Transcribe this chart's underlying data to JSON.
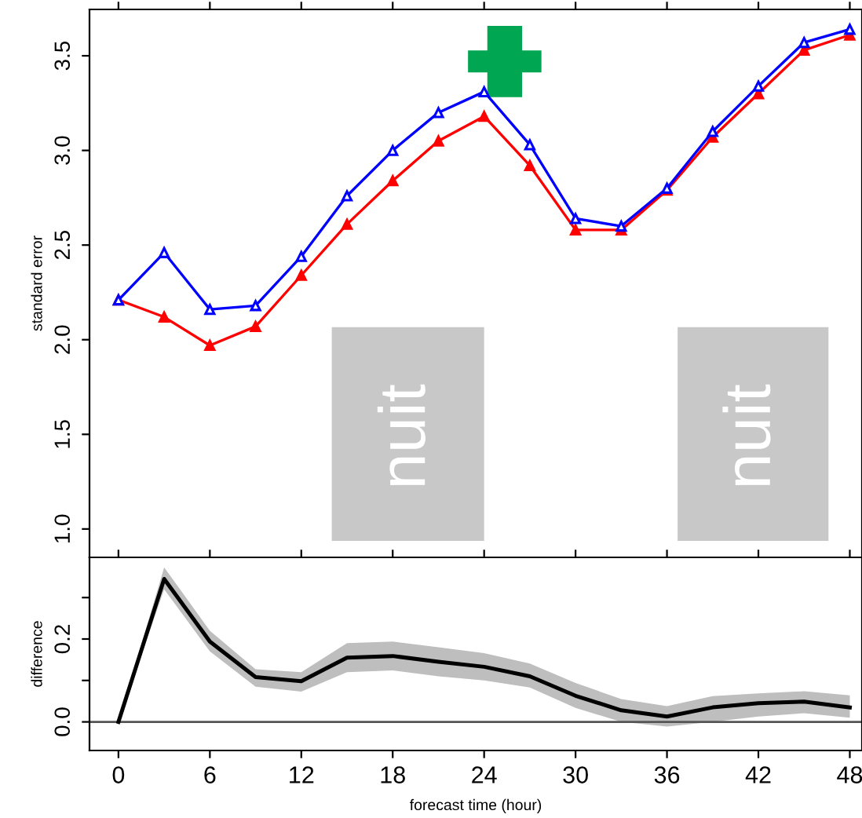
{
  "chart_data": [
    {
      "type": "line",
      "ylabel": "standard error",
      "x": [
        0,
        3,
        6,
        9,
        12,
        15,
        18,
        21,
        24,
        27,
        30,
        33,
        36,
        39,
        42,
        45,
        48
      ],
      "series": [
        {
          "color": "#0000ff",
          "marker": "triangle",
          "values": [
            2.21,
            2.46,
            2.16,
            2.18,
            2.44,
            2.76,
            3.0,
            3.2,
            3.31,
            3.03,
            2.64,
            2.6,
            2.8,
            3.1,
            3.34,
            3.57,
            3.64
          ]
        },
        {
          "color": "#ff0000",
          "marker": "triangle",
          "values": [
            2.21,
            2.12,
            1.97,
            2.07,
            2.34,
            2.61,
            2.84,
            3.05,
            3.18,
            2.92,
            2.58,
            2.58,
            2.79,
            3.07,
            3.3,
            3.53,
            3.61
          ]
        }
      ],
      "xlim": [
        -1.9,
        48.8
      ],
      "xticks": [
        {
          "value": 0,
          "label": null
        },
        {
          "value": 6,
          "label": null
        },
        {
          "value": 12,
          "label": null
        },
        {
          "value": 18,
          "label": null
        },
        {
          "value": 24,
          "label": null
        },
        {
          "value": 30,
          "label": null
        },
        {
          "value": 36,
          "label": null
        },
        {
          "value": 42,
          "label": null
        },
        {
          "value": 48,
          "label": null
        }
      ],
      "ylim": [
        0.85,
        3.745
      ],
      "yticks": [
        {
          "value": 1,
          "label": "1.0"
        },
        1.5,
        {
          "value": 2,
          "label": "2.0"
        },
        2.5,
        {
          "value": 3,
          "label": "3.0"
        },
        3.5
      ],
      "bands": [
        {
          "axis": "x",
          "from": 14.0,
          "to": 24.0,
          "label": "nuit",
          "color": "#c8c8c8"
        },
        {
          "axis": "x",
          "from": 36.7,
          "to": 46.6,
          "label": "nuit",
          "color": "#c8c8c8"
        }
      ],
      "tick_labels": "y",
      "grid": false,
      "legend": false
    },
    {
      "type": "line",
      "xlabel": "forecast time (hour)",
      "ylabel": "difference",
      "x": [
        0,
        3,
        6,
        9,
        12,
        15,
        18,
        21,
        24,
        27,
        30,
        33,
        36,
        39,
        42,
        45,
        48
      ],
      "series": [
        {
          "color": "#000000",
          "values": [
            0,
            0.345,
            0.194,
            0.108,
            0.098,
            0.155,
            0.159,
            0.145,
            0.133,
            0.11,
            0.063,
            0.028,
            0.013,
            0.035,
            0.045,
            0.049,
            0.035
          ],
          "lower": [
            0,
            0.32,
            0.17,
            0.085,
            0.073,
            0.12,
            0.124,
            0.11,
            0.1,
            0.083,
            0.034,
            0.0,
            -0.011,
            0.0,
            0.013,
            0.021,
            0.01
          ],
          "upper": [
            0,
            0.373,
            0.22,
            0.127,
            0.12,
            0.19,
            0.194,
            0.18,
            0.166,
            0.141,
            0.094,
            0.055,
            0.038,
            0.062,
            0.069,
            0.074,
            0.064
          ]
        }
      ],
      "xlim": [
        -1.9,
        48.8
      ],
      "xticks": [
        0,
        6,
        12,
        18,
        24,
        30,
        36,
        42,
        48
      ],
      "ylim": [
        -0.069,
        0.397
      ],
      "yticks": [
        {
          "value": 0,
          "label": "0.0"
        },
        {
          "value": 0.1,
          "label": null
        },
        0.2,
        {
          "value": 0.3,
          "label": null
        }
      ],
      "ref_lines": [
        {
          "axis": "y",
          "value": 0,
          "color": "#555555"
        }
      ],
      "grid": false,
      "legend": false
    }
  ]
}
